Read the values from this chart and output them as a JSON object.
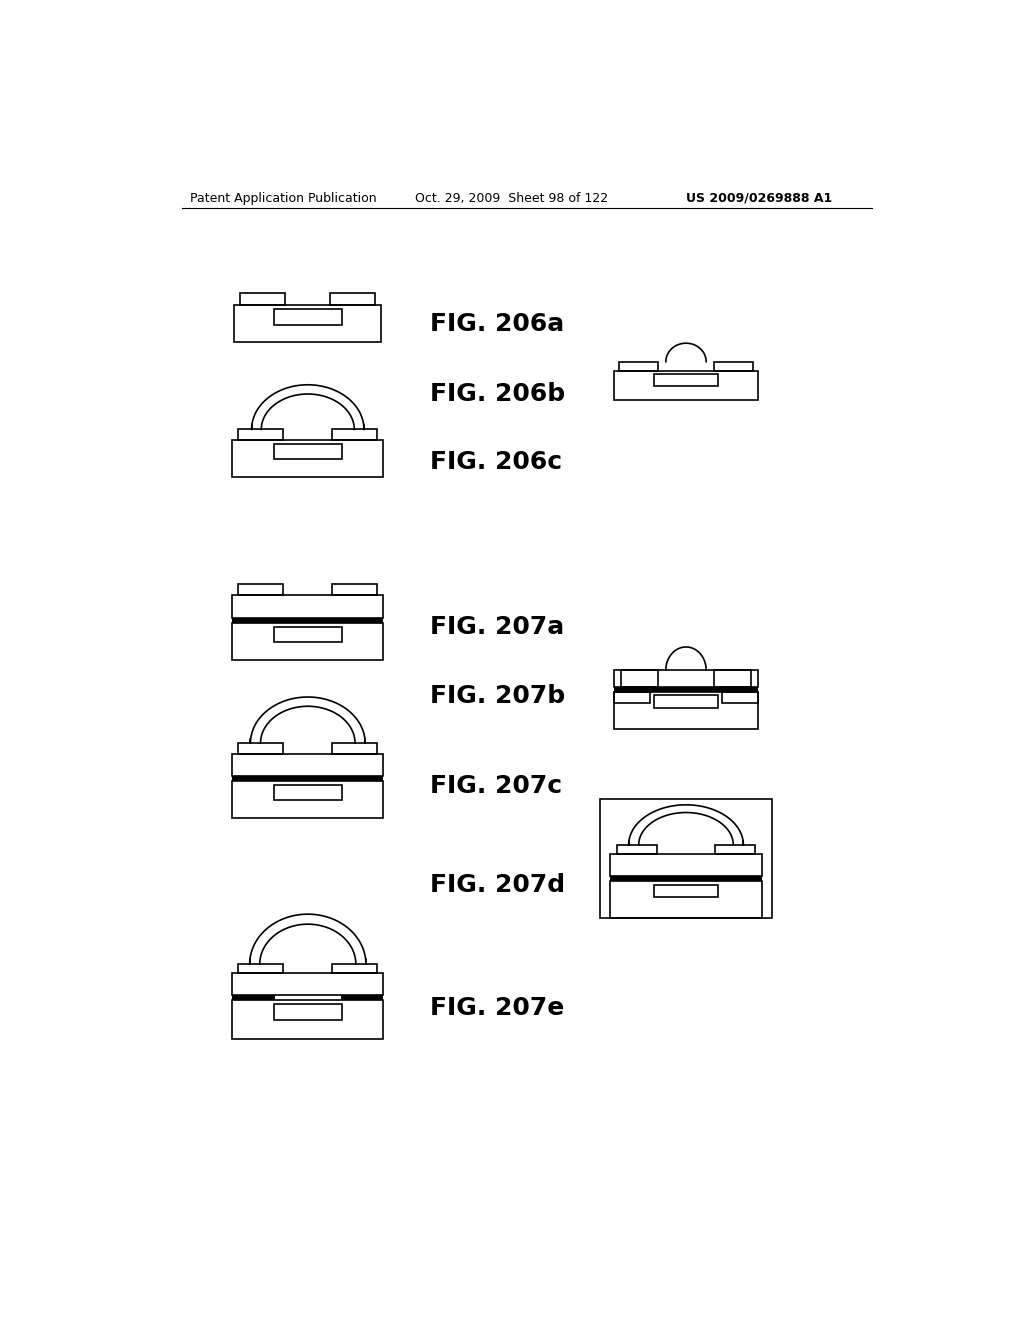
{
  "background_color": "#ffffff",
  "header_left": "Patent Application Publication",
  "header_mid": "Oct. 29, 2009  Sheet 98 of 122",
  "header_right": "US 2009/0269888 A1",
  "lw_thin": 1.2,
  "lw_thick": 4.5,
  "fig_label_fs": 18
}
